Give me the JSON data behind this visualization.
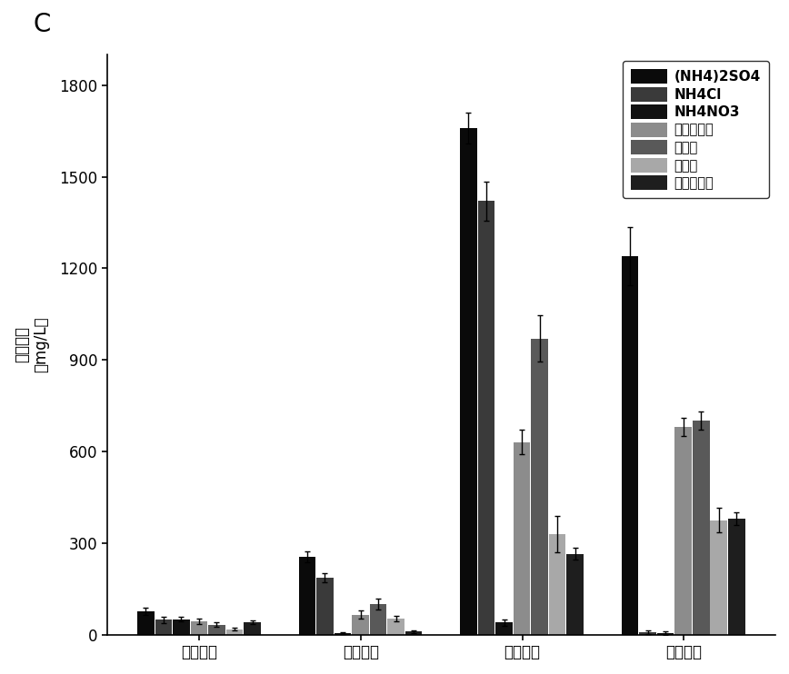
{
  "title": "C",
  "ylabel_line1": "酯的浓度",
  "ylabel_line2": "（mg/L）",
  "categories": [
    "戊酸乙酯",
    "己酸乙酯",
    "辛酸乙酯",
    "癸酸乙酯"
  ],
  "legend_labels": [
    "(NH4)2SO4",
    "NH4Cl",
    "NH4NO3",
    "大豆蛋白胨",
    "酵母膏",
    "牛肉膏",
    "玉米浆干粉"
  ],
  "bar_colors": [
    "#0a0a0a",
    "#3a3a3a",
    "#111111",
    "#8c8c8c",
    "#595959",
    "#a8a8a8",
    "#1e1e1e"
  ],
  "values": [
    [
      75,
      48,
      50,
      42,
      32,
      18,
      40
    ],
    [
      255,
      185,
      5,
      65,
      100,
      52,
      10
    ],
    [
      1660,
      1420,
      40,
      630,
      970,
      330,
      265
    ],
    [
      1240,
      8,
      5,
      680,
      700,
      375,
      380
    ]
  ],
  "errors": [
    [
      12,
      10,
      7,
      9,
      7,
      5,
      7
    ],
    [
      18,
      15,
      4,
      14,
      18,
      10,
      5
    ],
    [
      50,
      65,
      10,
      40,
      75,
      60,
      20
    ],
    [
      95,
      5,
      5,
      30,
      30,
      40,
      20
    ]
  ],
  "ylim": [
    0,
    1900
  ],
  "yticks": [
    0,
    300,
    600,
    900,
    1200,
    1500,
    1800
  ],
  "background_color": "#ffffff"
}
